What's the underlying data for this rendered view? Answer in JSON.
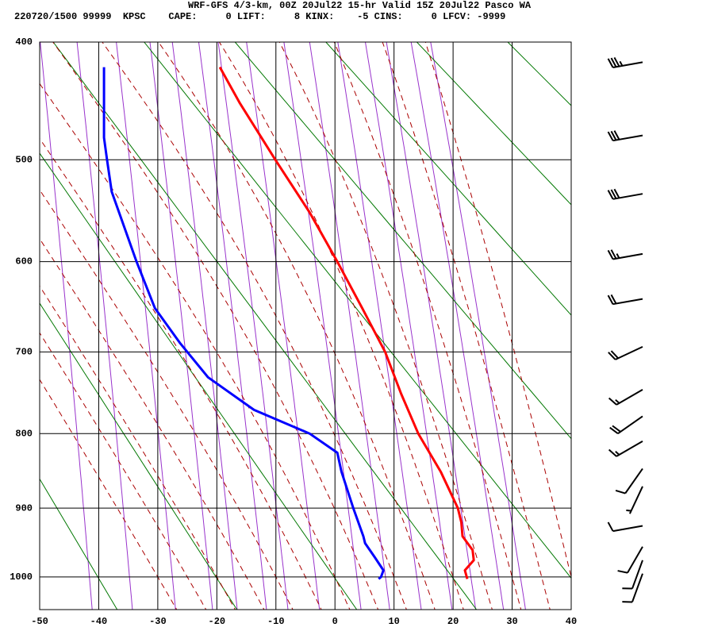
{
  "chart_data": {
    "type": "sounding",
    "title": "WRF-GFS 4/3-km, 00Z 20Jul22 15-hr Valid 15Z 20Jul22 Pasco WA",
    "subtitle": "220720/1500 99999  KPSC    CAPE:     0 LIFT:     8 KINX:    -5 CINS:     0 LFCV: -9999",
    "xlim": [
      -50,
      40
    ],
    "xticks": [
      -50,
      -40,
      -30,
      -20,
      -10,
      0,
      10,
      20,
      30,
      40
    ],
    "ylim": [
      1050,
      400
    ],
    "yticks": [
      400,
      500,
      600,
      700,
      800,
      900,
      1000
    ],
    "grid": true,
    "series": [
      {
        "name": "Temperature",
        "color": "#ff0000",
        "pressure": [
          420,
          450,
          500,
          550,
          600,
          650,
          700,
          750,
          800,
          850,
          900,
          920,
          940,
          960,
          975,
          990,
          1003
        ],
        "temperature": [
          -19.5,
          -16.1,
          -10.1,
          -4.3,
          0.4,
          4.6,
          8.5,
          11.2,
          14.1,
          17.9,
          20.8,
          21.4,
          21.6,
          23.3,
          23.5,
          22.0,
          22.4
        ]
      },
      {
        "name": "Dewpoint",
        "color": "#0000ff",
        "pressure": [
          420,
          480,
          500,
          530,
          600,
          650,
          690,
          730,
          770,
          800,
          825,
          850,
          900,
          940,
          950,
          970,
          990,
          1000,
          1003
        ],
        "temperature": [
          -39.1,
          -39.1,
          -38.6,
          -37.8,
          -33.6,
          -30.5,
          -26.2,
          -21.5,
          -13.7,
          -4.3,
          0.4,
          1.1,
          3.1,
          4.8,
          5.1,
          6.7,
          8.2,
          7.8,
          7.4
        ]
      }
    ],
    "winds": {
      "pressure": [
        416,
        478,
        532,
        592,
        640,
        694,
        745,
        778,
        810,
        846,
        870,
        925,
        955,
        975,
        995
      ],
      "direction": [
        260,
        260,
        260,
        260,
        260,
        245,
        240,
        235,
        240,
        215,
        205,
        260,
        210,
        200,
        200
      ],
      "speed": [
        35,
        30,
        30,
        25,
        20,
        20,
        15,
        20,
        15,
        10,
        5,
        10,
        10,
        10,
        10
      ]
    }
  }
}
